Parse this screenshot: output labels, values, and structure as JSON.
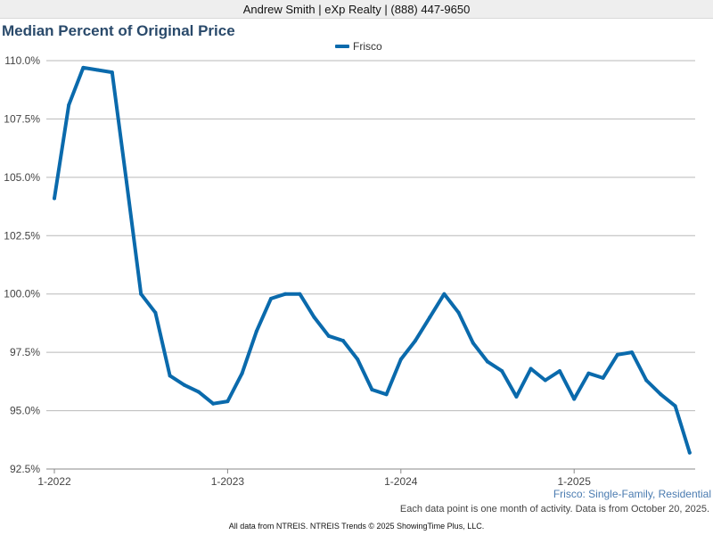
{
  "header": {
    "agent": "Andrew Smith | eXp Realty | (888) 447-9650"
  },
  "chart_data": {
    "type": "line",
    "title": "Median Percent of Original Price",
    "subtitle": "Frisco: Single-Family, Residential",
    "note": "Each data point is one month of activity. Data is from October 20, 2025.",
    "footer": "All data from NTREIS. NTREIS Trends © 2025 ShowingTime Plus, LLC.",
    "colors": {
      "series": "#0a6aac",
      "title": "#2a4a6b",
      "grid": "#b9b9b9"
    },
    "legend_position": "top-center",
    "grid": true,
    "ylim": [
      92.5,
      110.0
    ],
    "y_ticks": [
      "92.5%",
      "95.0%",
      "97.5%",
      "100.0%",
      "102.5%",
      "105.0%",
      "107.5%",
      "110.0%"
    ],
    "y_tick_values": [
      92.5,
      95.0,
      97.5,
      100.0,
      102.5,
      105.0,
      107.5,
      110.0
    ],
    "x": [
      "1-2022",
      "2-2022",
      "3-2022",
      "4-2022",
      "5-2022",
      "6-2022",
      "7-2022",
      "8-2022",
      "9-2022",
      "10-2022",
      "11-2022",
      "12-2022",
      "1-2023",
      "2-2023",
      "3-2023",
      "4-2023",
      "5-2023",
      "6-2023",
      "7-2023",
      "8-2023",
      "9-2023",
      "10-2023",
      "11-2023",
      "12-2023",
      "1-2024",
      "2-2024",
      "3-2024",
      "4-2024",
      "5-2024",
      "6-2024",
      "7-2024",
      "8-2024",
      "9-2024",
      "10-2024",
      "11-2024",
      "12-2024",
      "1-2025",
      "2-2025",
      "3-2025",
      "4-2025",
      "5-2025",
      "6-2025",
      "7-2025",
      "8-2025",
      "9-2025"
    ],
    "x_ticks": [
      "1-2022",
      "1-2023",
      "1-2024",
      "1-2025"
    ],
    "x_tick_index": [
      0,
      12,
      24,
      36
    ],
    "series": [
      {
        "name": "Frisco",
        "values": [
          104.1,
          108.1,
          109.7,
          109.6,
          109.5,
          104.8,
          100.0,
          99.2,
          96.5,
          96.1,
          95.8,
          95.3,
          95.4,
          96.6,
          98.4,
          99.8,
          100.0,
          100.0,
          99.0,
          98.2,
          98.0,
          97.2,
          95.9,
          95.7,
          97.2,
          98.0,
          99.0,
          100.0,
          99.2,
          97.9,
          97.1,
          96.7,
          95.6,
          96.8,
          96.3,
          96.7,
          95.5,
          96.6,
          96.4,
          97.4,
          97.5,
          96.3,
          95.7,
          95.2,
          93.2
        ]
      }
    ]
  }
}
